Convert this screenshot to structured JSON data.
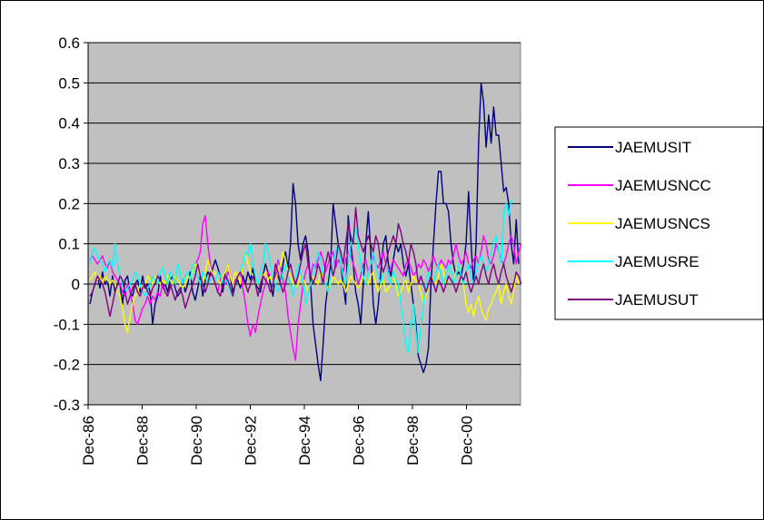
{
  "chart_data": {
    "type": "line",
    "title": "",
    "xlabel": "",
    "ylabel": "",
    "ylim": [
      -0.3,
      0.6
    ],
    "yticks": [
      "0.6",
      "0.5",
      "0.4",
      "0.3",
      "0.2",
      "0.1",
      "0",
      "-0.1",
      "-0.2",
      "-0.3"
    ],
    "xtick_labels": [
      "Dec-86",
      "Dec-88",
      "Dec-90",
      "Dec-92",
      "Dec-94",
      "Dec-96",
      "Dec-98",
      "Dec-00"
    ],
    "x_start": "Dec-86",
    "x_end": "Dec-02",
    "plot_background": "#c0c0c0",
    "grid": true,
    "legend_position": "right",
    "series": [
      {
        "name": "JAEMUSIT",
        "color": "#000080",
        "values": [
          -0.05,
          -0.02,
          0.0,
          0.02,
          -0.01,
          0.03,
          0.0,
          0.01,
          -0.03,
          0.02,
          -0.02,
          0.0,
          0.0,
          -0.05,
          0.01,
          0.02,
          -0.02,
          -0.03,
          0.0,
          0.01,
          -0.02,
          0.02,
          -0.01,
          0.0,
          -0.02,
          -0.1,
          -0.05,
          -0.03,
          0.02,
          -0.01,
          0.0,
          -0.02,
          0.01,
          0.02,
          -0.01,
          -0.03,
          -0.02,
          0.01,
          -0.02,
          0.0,
          0.03,
          -0.02,
          -0.04,
          -0.01,
          0.02,
          -0.03,
          0.01,
          0.03,
          0.02,
          0.04,
          0.06,
          0.04,
          0.02,
          -0.02,
          0.03,
          0.05,
          0.02,
          -0.02,
          0.0,
          0.01,
          -0.01,
          0.02,
          0.0,
          0.03,
          0.01,
          0.04,
          0.0,
          -0.01,
          -0.02,
          0.02,
          0.05,
          0.03,
          0.0,
          -0.03,
          0.03,
          0.02,
          0.0,
          0.05,
          0.08,
          0.04,
          0.1,
          0.25,
          0.2,
          0.1,
          0.06,
          0.1,
          0.12,
          0.08,
          0.0,
          -0.1,
          -0.15,
          -0.2,
          -0.24,
          -0.15,
          -0.05,
          0.0,
          0.05,
          0.2,
          0.15,
          0.1,
          0.05,
          0.0,
          -0.05,
          0.17,
          0.1,
          0.05,
          -0.02,
          -0.05,
          -0.1,
          0.0,
          0.1,
          0.18,
          0.08,
          -0.05,
          -0.1,
          -0.05,
          0.03,
          0.1,
          0.12,
          0.05,
          0.02,
          0.06,
          0.1,
          0.08,
          0.1,
          0.05,
          0.02,
          0.05,
          0.0,
          -0.05,
          -0.1,
          -0.18,
          -0.2,
          -0.22,
          -0.2,
          -0.16,
          0.0,
          0.1,
          0.2,
          0.28,
          0.28,
          0.2,
          0.2,
          0.18,
          0.1,
          0.05,
          0.02,
          0.03,
          0.02,
          0.05,
          0.1,
          0.23,
          0.1,
          0.0,
          0.1,
          0.35,
          0.5,
          0.45,
          0.34,
          0.42,
          0.35,
          0.44,
          0.37,
          0.37,
          0.3,
          0.23,
          0.24,
          0.2,
          0.1,
          0.05,
          0.16,
          0.05
        ]
      },
      {
        "name": "JAEMUSNCC",
        "color": "#ff00ff",
        "values": [
          0.06,
          0.07,
          0.06,
          0.05,
          0.06,
          0.07,
          0.05,
          0.04,
          0.06,
          0.03,
          0.02,
          0.01,
          0.0,
          -0.02,
          -0.03,
          0.0,
          -0.02,
          -0.05,
          -0.09,
          -0.1,
          -0.08,
          -0.06,
          -0.05,
          -0.03,
          -0.05,
          -0.03,
          -0.04,
          -0.02,
          -0.03,
          0.0,
          -0.02,
          -0.03,
          -0.01,
          0.0,
          0.02,
          0.01,
          0.0,
          -0.01,
          0.0,
          0.02,
          0.01,
          0.03,
          0.05,
          0.06,
          0.08,
          0.15,
          0.17,
          0.1,
          0.05,
          0.02,
          0.0,
          -0.02,
          0.01,
          0.02,
          0.0,
          0.03,
          0.02,
          0.0,
          0.01,
          0.02,
          0.03,
          -0.01,
          -0.05,
          -0.1,
          -0.13,
          -0.1,
          -0.12,
          -0.08,
          -0.05,
          -0.02,
          0.0,
          0.03,
          0.02,
          0.0,
          0.02,
          0.06,
          0.04,
          0.01,
          -0.02,
          -0.08,
          -0.12,
          -0.16,
          -0.19,
          -0.1,
          -0.05,
          0.0,
          0.03,
          0.05,
          0.02,
          0.05,
          0.04,
          0.06,
          0.08,
          0.06,
          0.03,
          0.05,
          0.07,
          0.08,
          0.04,
          0.06,
          0.05,
          0.03,
          0.06,
          0.08,
          0.07,
          0.05,
          0.03,
          0.0,
          0.02,
          0.05,
          0.06,
          0.03,
          0.05,
          0.07,
          0.05,
          0.04,
          0.06,
          0.08,
          0.05,
          0.03,
          0.04,
          0.06,
          0.05,
          0.04,
          0.03,
          0.02,
          0.05,
          0.06,
          0.04,
          0.02,
          0.03,
          0.05,
          0.04,
          0.06,
          0.05,
          0.03,
          0.05,
          0.07,
          0.05,
          0.04,
          0.06,
          0.05,
          0.04,
          0.06,
          0.05,
          0.07,
          0.1,
          0.07,
          0.05,
          0.06,
          0.08,
          0.05,
          0.04,
          0.06,
          0.07,
          0.05,
          0.08,
          0.12,
          0.1,
          0.06,
          0.05,
          0.07,
          0.1,
          0.08,
          0.06,
          0.05,
          0.07,
          0.1,
          0.12,
          0.1,
          0.05,
          0.08,
          0.1
        ]
      },
      {
        "name": "JAEMUSNCS",
        "color": "#ffff00",
        "values": [
          0.01,
          0.02,
          0.03,
          0.01,
          0.02,
          0.0,
          0.02,
          0.01,
          0.0,
          0.01,
          0.0,
          -0.02,
          -0.03,
          -0.06,
          -0.1,
          -0.12,
          -0.08,
          -0.05,
          -0.03,
          -0.02,
          0.0,
          -0.01,
          0.0,
          0.02,
          0.01,
          0.0,
          0.02,
          0.01,
          0.0,
          0.01,
          0.0,
          0.02,
          0.01,
          0.0,
          0.02,
          0.01,
          0.0,
          -0.01,
          0.0,
          0.02,
          0.01,
          0.03,
          0.05,
          0.04,
          0.02,
          0.0,
          0.03,
          0.06,
          0.04,
          0.02,
          0.03,
          0.01,
          0.0,
          0.02,
          0.03,
          0.05,
          0.02,
          0.0,
          0.03,
          0.02,
          0.0,
          0.05,
          0.08,
          0.05,
          0.03,
          0.02,
          0.0,
          0.01,
          0.0,
          0.02,
          0.03,
          0.01,
          0.02,
          0.0,
          0.01,
          0.03,
          0.05,
          0.08,
          0.06,
          0.03,
          0.02,
          0.0,
          -0.01,
          0.0,
          0.02,
          0.01,
          0.0,
          -0.02,
          0.0,
          0.02,
          0.01,
          0.0,
          0.03,
          0.02,
          0.0,
          -0.01,
          0.0,
          0.02,
          0.01,
          0.0,
          0.01,
          0.0,
          -0.02,
          0.0,
          0.02,
          0.01,
          0.0,
          -0.01,
          0.0,
          0.02,
          0.01,
          0.0,
          0.02,
          0.03,
          0.0,
          -0.02,
          0.0,
          0.01,
          -0.02,
          -0.01,
          0.0,
          0.02,
          0.0,
          -0.03,
          -0.02,
          0.0,
          0.01,
          -0.02,
          0.0,
          0.02,
          0.01,
          0.0,
          -0.02,
          -0.05,
          -0.03,
          0.0,
          0.02,
          0.01,
          0.0,
          0.02,
          0.05,
          0.03,
          0.0,
          0.02,
          0.01,
          0.0,
          0.03,
          0.05,
          0.02,
          0.0,
          -0.05,
          -0.07,
          -0.05,
          -0.08,
          -0.05,
          -0.03,
          -0.06,
          -0.08,
          -0.09,
          -0.06,
          -0.05,
          -0.03,
          -0.02,
          0.0,
          -0.05,
          -0.02,
          0.0,
          -0.03,
          -0.05,
          -0.02,
          0.02,
          0.0
        ]
      },
      {
        "name": "JAEMUSRE",
        "color": "#00ffff",
        "values": [
          0.05,
          0.08,
          0.09,
          0.07,
          0.06,
          0.05,
          0.03,
          0.05,
          0.06,
          0.04,
          0.1,
          0.05,
          0.02,
          0.0,
          -0.02,
          -0.01,
          0.0,
          0.01,
          0.03,
          0.02,
          0.0,
          -0.02,
          -0.03,
          -0.01,
          0.0,
          0.02,
          0.01,
          0.0,
          0.03,
          0.04,
          0.02,
          0.0,
          0.03,
          0.02,
          0.0,
          0.05,
          0.03,
          0.0,
          0.02,
          0.03,
          0.01,
          0.05,
          0.03,
          0.02,
          0.0,
          0.03,
          0.02,
          0.0,
          0.01,
          0.02,
          0.0,
          0.03,
          0.02,
          0.0,
          0.01,
          0.0,
          -0.02,
          -0.03,
          0.0,
          0.02,
          0.03,
          0.05,
          0.08,
          0.07,
          0.1,
          0.05,
          0.02,
          0.0,
          0.03,
          0.05,
          0.1,
          0.08,
          0.05,
          0.02,
          0.0,
          -0.02,
          0.0,
          0.03,
          0.05,
          0.02,
          0.0,
          -0.03,
          0.0,
          0.05,
          0.03,
          0.0,
          -0.05,
          -0.02,
          0.0,
          0.03,
          0.05,
          0.08,
          0.06,
          0.02,
          0.0,
          -0.02,
          0.03,
          0.05,
          0.08,
          0.1,
          0.05,
          0.02,
          0.0,
          0.05,
          0.1,
          0.12,
          0.14,
          0.1,
          0.05,
          0.02,
          0.0,
          0.03,
          0.05,
          0.08,
          0.05,
          0.02,
          0.0,
          0.03,
          0.05,
          0.02,
          0.0,
          0.03,
          0.01,
          0.0,
          -0.05,
          -0.1,
          -0.15,
          -0.17,
          -0.1,
          -0.05,
          -0.12,
          -0.17,
          -0.1,
          -0.05,
          0.0,
          0.03,
          0.02,
          0.0,
          0.03,
          0.05,
          0.02,
          0.0,
          0.02,
          0.05,
          0.03,
          0.0,
          0.02,
          0.05,
          0.02,
          0.0,
          0.03,
          0.05,
          0.02,
          0.0,
          0.03,
          0.05,
          0.07,
          0.05,
          0.03,
          0.05,
          0.08,
          0.1,
          0.12,
          0.08,
          0.05,
          0.18,
          0.2,
          0.17,
          0.21
        ]
      },
      {
        "name": "JAEMUSUT",
        "color": "#800080",
        "values": [
          -0.03,
          -0.02,
          0.0,
          0.02,
          0.01,
          0.0,
          -0.02,
          -0.05,
          -0.08,
          -0.05,
          -0.02,
          0.0,
          0.02,
          0.01,
          -0.02,
          -0.05,
          -0.03,
          -0.01,
          0.0,
          -0.02,
          -0.03,
          -0.01,
          0.0,
          -0.02,
          -0.03,
          -0.01,
          0.0,
          0.02,
          0.01,
          0.0,
          -0.02,
          -0.03,
          0.0,
          -0.02,
          -0.04,
          -0.02,
          -0.01,
          -0.03,
          -0.06,
          -0.04,
          -0.02,
          0.0,
          0.02,
          0.05,
          0.02,
          0.0,
          -0.02,
          0.0,
          0.03,
          0.02,
          0.0,
          -0.02,
          -0.03,
          0.0,
          0.02,
          0.01,
          -0.01,
          -0.03,
          0.0,
          0.02,
          0.03,
          0.01,
          0.0,
          -0.02,
          0.0,
          0.02,
          0.0,
          -0.03,
          0.0,
          0.02,
          0.01,
          0.0,
          -0.02,
          0.0,
          0.05,
          0.03,
          0.0,
          -0.02,
          0.0,
          0.03,
          0.05,
          0.02,
          0.0,
          0.02,
          0.05,
          0.08,
          0.1,
          0.05,
          0.02,
          0.0,
          0.02,
          0.05,
          0.03,
          0.0,
          0.05,
          0.08,
          0.05,
          0.02,
          0.05,
          0.1,
          0.08,
          0.05,
          0.1,
          0.15,
          0.12,
          0.1,
          0.19,
          0.12,
          0.1,
          0.08,
          0.1,
          0.12,
          0.1,
          0.08,
          0.12,
          0.1,
          0.05,
          0.03,
          0.05,
          0.08,
          0.1,
          0.12,
          0.1,
          0.15,
          0.13,
          0.1,
          0.08,
          0.05,
          0.1,
          0.08,
          0.05,
          0.0,
          0.02,
          0.0,
          -0.02,
          0.0,
          0.02,
          0.0,
          -0.02,
          0.01,
          0.0,
          -0.02,
          0.0,
          0.02,
          0.01,
          0.0,
          -0.02,
          0.0,
          0.02,
          0.01,
          0.03,
          0.0,
          -0.02,
          0.0,
          0.02,
          0.0,
          0.03,
          0.05,
          0.02,
          0.0,
          0.03,
          0.05,
          0.02,
          0.0,
          0.03,
          0.05,
          0.02,
          0.0,
          -0.02,
          0.0,
          0.03,
          0.02,
          0.0
        ]
      }
    ]
  }
}
